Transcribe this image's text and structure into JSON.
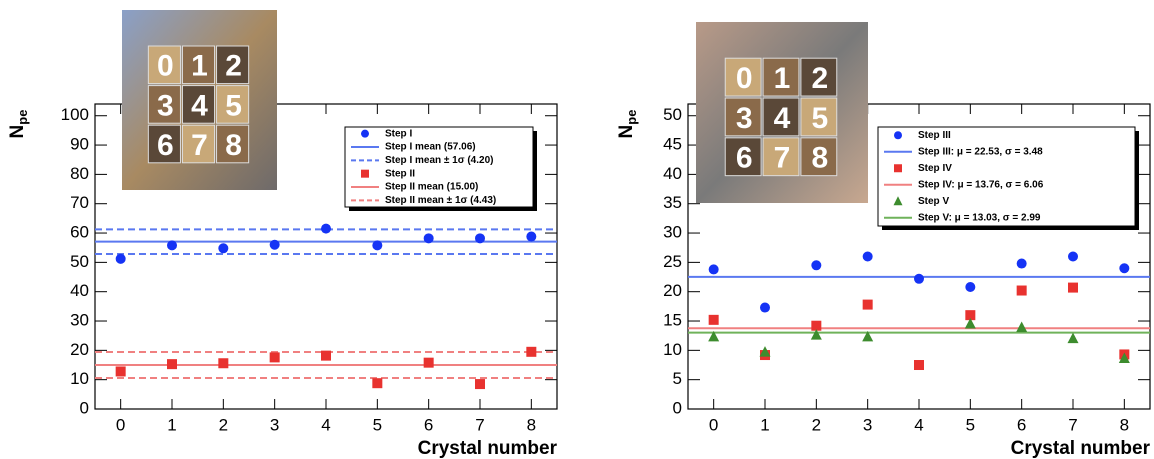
{
  "chart_data": [
    {
      "type": "scatter",
      "x_label": "Crystal number",
      "y_label": "N",
      "y_label_sub": "pe",
      "x": [
        0,
        1,
        2,
        3,
        4,
        5,
        6,
        7,
        8
      ],
      "xlim": [
        -0.5,
        8.5
      ],
      "xticks": [
        0,
        1,
        2,
        3,
        4,
        5,
        6,
        7,
        8
      ],
      "ylim": [
        0,
        104
      ],
      "yticks": [
        0,
        10,
        20,
        30,
        40,
        50,
        60,
        70,
        80,
        90,
        100
      ],
      "inset_labels": [
        "0",
        "1",
        "2",
        "3",
        "4",
        "5",
        "6",
        "7",
        "8"
      ],
      "series": [
        {
          "name": "Step I",
          "marker": "circle",
          "color": "#1533f5",
          "line_color": "#5a78f0",
          "values": [
            51.2,
            55.8,
            54.8,
            56,
            61.5,
            55.8,
            58.2,
            58.2,
            58.8
          ],
          "mean": 57.06,
          "sigma": 4.2,
          "mean_label": "Step I mean (57.06)",
          "sigma_label": "Step I mean  ± 1σ (4.20)"
        },
        {
          "name": "Step II",
          "marker": "square",
          "color": "#e8322f",
          "line_color": "#f08080",
          "values": [
            12.8,
            15.3,
            15.6,
            17.6,
            18.2,
            8.8,
            15.8,
            8.5,
            19.5
          ],
          "mean": 15.0,
          "sigma": 4.43,
          "mean_label": "Step II mean (15.00)",
          "sigma_label": "Step II mean  ± 1σ (4.43)"
        }
      ]
    },
    {
      "type": "scatter",
      "x_label": "Crystal number",
      "y_label": "N",
      "y_label_sub": "pe",
      "x": [
        0,
        1,
        2,
        3,
        4,
        5,
        6,
        7,
        8
      ],
      "xlim": [
        -0.5,
        8.5
      ],
      "xticks": [
        0,
        1,
        2,
        3,
        4,
        5,
        6,
        7,
        8
      ],
      "ylim": [
        0,
        52
      ],
      "yticks": [
        0,
        5,
        10,
        15,
        20,
        25,
        30,
        35,
        40,
        45,
        50
      ],
      "inset_labels": [
        "0",
        "1",
        "2",
        "3",
        "4",
        "5",
        "6",
        "7",
        "8"
      ],
      "series": [
        {
          "name": "Step III",
          "marker": "circle",
          "color": "#1533f5",
          "line_color": "#5a78f0",
          "values": [
            23.8,
            17.3,
            24.5,
            26,
            22.2,
            20.8,
            24.8,
            26,
            24
          ],
          "mean": 22.53,
          "mean_label": "Step III:  μ = 22.53,   σ = 3.48"
        },
        {
          "name": "Step IV",
          "marker": "square",
          "color": "#e8322f",
          "line_color": "#f08080",
          "values": [
            15.2,
            9.2,
            14.2,
            17.8,
            7.5,
            16,
            20.2,
            20.7,
            9.3
          ],
          "mean": 13.76,
          "mean_label": "Step IV:  μ = 13.76,   σ = 6.06"
        },
        {
          "name": "Step V",
          "marker": "triangle",
          "color": "#3d8c2e",
          "line_color": "#6fb25a",
          "values": [
            12.3,
            9.7,
            12.6,
            12.3,
            null,
            14.5,
            13.9,
            12,
            8.6
          ],
          "mean": 13.03,
          "mean_label": "Step V:  μ = 13.03,   σ = 2.99"
        }
      ]
    }
  ]
}
